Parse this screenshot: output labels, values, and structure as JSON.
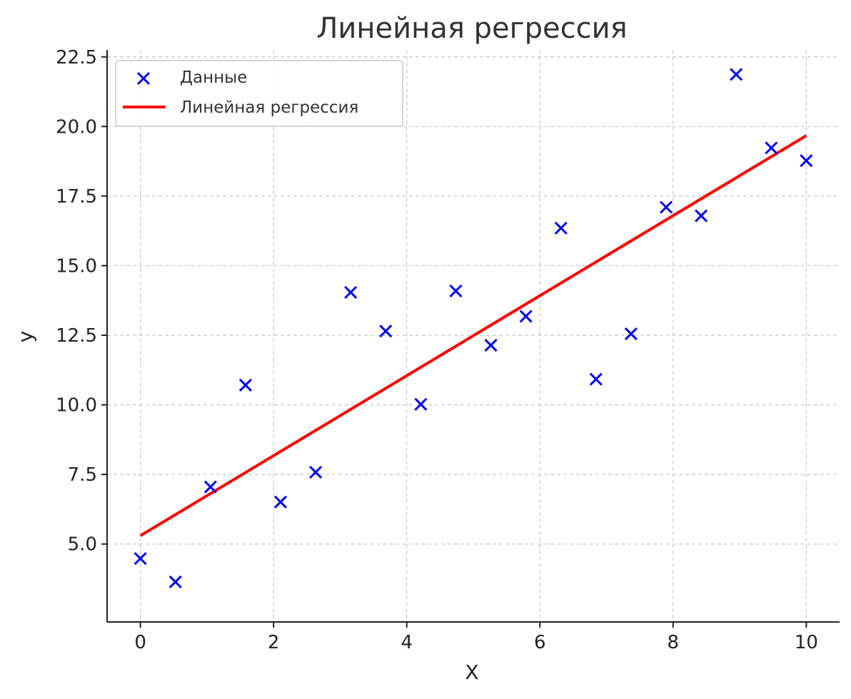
{
  "chart_data": {
    "type": "scatter",
    "title": "Линейная регрессия",
    "xlabel": "X",
    "ylabel": "y",
    "xlim": [
      -0.5,
      10.5
    ],
    "ylim": [
      2.2,
      22.75
    ],
    "x_ticks": [
      0,
      2,
      4,
      6,
      8,
      10
    ],
    "x_tick_labels": [
      "0",
      "2",
      "4",
      "6",
      "8",
      "10"
    ],
    "y_ticks": [
      5.0,
      7.5,
      10.0,
      12.5,
      15.0,
      17.5,
      20.0,
      22.5
    ],
    "y_tick_labels": [
      "5.0",
      "7.5",
      "10.0",
      "12.5",
      "15.0",
      "17.5",
      "20.0",
      "22.5"
    ],
    "grid": true,
    "legend_position": "top-left",
    "series": [
      {
        "name": "Данные",
        "kind": "scatter",
        "marker": "x",
        "color": "#0000ff",
        "x": [
          0.0,
          0.526,
          1.053,
          1.579,
          2.105,
          2.632,
          3.158,
          3.684,
          4.211,
          4.737,
          5.263,
          5.789,
          6.316,
          6.842,
          7.368,
          7.895,
          8.421,
          8.947,
          9.474,
          10.0
        ],
        "y": [
          4.48,
          3.64,
          7.05,
          10.71,
          6.51,
          7.58,
          14.04,
          12.65,
          10.02,
          14.09,
          12.14,
          13.18,
          16.35,
          10.92,
          12.55,
          17.1,
          16.79,
          21.87,
          19.23,
          18.77
        ]
      },
      {
        "name": "Линейная регрессия",
        "kind": "line",
        "color": "#ff0000",
        "x": [
          0.0,
          10.0
        ],
        "y": [
          5.3,
          19.67
        ]
      }
    ]
  }
}
